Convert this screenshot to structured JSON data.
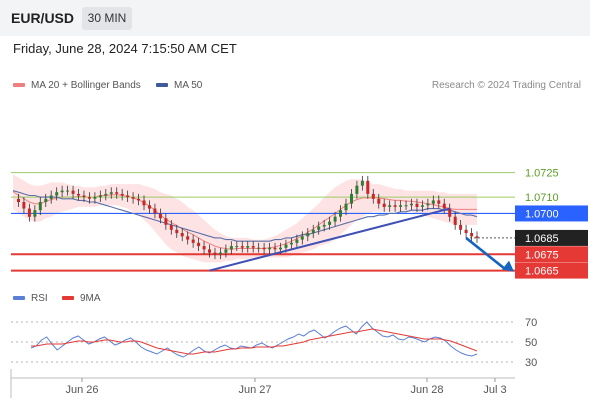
{
  "header": {
    "pair": "EUR/USD",
    "timeframe": "30 MIN",
    "datetime": "Friday, June 28, 2024 7:15:50 AM CET"
  },
  "legend": {
    "bb_label": "MA 20 + Bollinger Bands",
    "ma50_label": "MA 50",
    "rsi_label": "RSI",
    "rsi_ma_label": "9MA",
    "credit": "Research © 2024 Trading Central"
  },
  "colors": {
    "bb_fill": "#fddede",
    "bb_line": "#f08080",
    "ma50": "#5b6fa8",
    "candle_up": "#2e7d32",
    "candle_down": "#c62828",
    "resistance": "#9ccc65",
    "pivot": "#2962ff",
    "support": "#e53935",
    "trendline": "#3f51b5",
    "arrow": "#1565c0",
    "rsi": "#5b7fd6",
    "rsi_ma": "#e53935",
    "last_price": "#222222"
  },
  "chart_data": [
    {
      "type": "candlestick",
      "title": "EUR/USD 30 MIN",
      "ylim": [
        1.0658,
        1.0745
      ],
      "x_ticks": [
        "Jun 26",
        "Jun 27",
        "Jun 28",
        "Jul 3"
      ],
      "levels": [
        {
          "label": "1.0725",
          "value": 1.0725,
          "kind": "resistance"
        },
        {
          "label": "1.0710",
          "value": 1.071,
          "kind": "resistance"
        },
        {
          "label": "1.0700",
          "value": 1.07,
          "kind": "pivot"
        },
        {
          "label": "1.0685",
          "value": 1.0685,
          "kind": "last"
        },
        {
          "label": "1.0675",
          "value": 1.0675,
          "kind": "support"
        },
        {
          "label": "1.0665",
          "value": 1.0665,
          "kind": "support"
        }
      ],
      "close_series": [
        1.0709,
        1.0707,
        1.0703,
        1.0698,
        1.0702,
        1.0707,
        1.0709,
        1.0711,
        1.0713,
        1.0714,
        1.0714,
        1.0712,
        1.0711,
        1.071,
        1.0709,
        1.071,
        1.0711,
        1.0712,
        1.0713,
        1.0712,
        1.0711,
        1.071,
        1.0709,
        1.0708,
        1.0705,
        1.0703,
        1.07,
        1.0697,
        1.0693,
        1.069,
        1.0688,
        1.0686,
        1.0684,
        1.0682,
        1.068,
        1.0678,
        1.0676,
        1.0675,
        1.0676,
        1.0678,
        1.068,
        1.068,
        1.0679,
        1.068,
        1.0679,
        1.0679,
        1.0678,
        1.0679,
        1.0678,
        1.0679,
        1.0681,
        1.0682,
        1.0684,
        1.0686,
        1.0688,
        1.069,
        1.0692,
        1.0693,
        1.0695,
        1.0698,
        1.0702,
        1.0706,
        1.0712,
        1.0717,
        1.072,
        1.0712,
        1.0709,
        1.0706,
        1.0704,
        1.0705,
        1.0704,
        1.0705,
        1.0705,
        1.0706,
        1.0704,
        1.0705,
        1.0706,
        1.0708,
        1.0706,
        1.0703,
        1.0698,
        1.0693,
        1.069,
        1.0688,
        1.0686,
        1.0685
      ],
      "ma50_series": [
        1.0714,
        1.0713,
        1.0712,
        1.0711,
        1.0711,
        1.071,
        1.071,
        1.071,
        1.071,
        1.0709,
        1.0709,
        1.0709,
        1.0708,
        1.0708,
        1.0707,
        1.0707,
        1.0706,
        1.0705,
        1.0704,
        1.0703,
        1.0702,
        1.0701,
        1.07,
        1.0699,
        1.0698,
        1.0697,
        1.0696,
        1.0695,
        1.0694,
        1.0693,
        1.0692,
        1.0691,
        1.069,
        1.0689,
        1.0688,
        1.0687,
        1.0686,
        1.0685,
        1.0685,
        1.0684,
        1.0684,
        1.0683,
        1.0683,
        1.0683,
        1.0683,
        1.0683,
        1.0683,
        1.0683,
        1.0684,
        1.0684,
        1.0685,
        1.0685,
        1.0686,
        1.0687,
        1.0687,
        1.0688,
        1.0689,
        1.069,
        1.0691,
        1.0692,
        1.0693,
        1.0694,
        1.0695,
        1.0696,
        1.0697,
        1.0698,
        1.0698,
        1.0699,
        1.0699,
        1.07,
        1.07,
        1.0701,
        1.0701,
        1.0702,
        1.0702,
        1.0702,
        1.0703,
        1.0703,
        1.0703,
        1.0702,
        1.0702,
        1.0701,
        1.07,
        1.0699,
        1.0699,
        1.0698
      ],
      "bb_upper": [
        1.0724,
        1.0722,
        1.072,
        1.0718,
        1.0717,
        1.0717,
        1.0718,
        1.0719,
        1.0719,
        1.0719,
        1.0718,
        1.0717,
        1.0717,
        1.0716,
        1.0716,
        1.0716,
        1.0717,
        1.0717,
        1.0718,
        1.0718,
        1.0718,
        1.0718,
        1.0718,
        1.0718,
        1.0717,
        1.0716,
        1.0715,
        1.0713,
        1.0712,
        1.0711,
        1.0709,
        1.0707,
        1.0704,
        1.0702,
        1.0699,
        1.0696,
        1.0693,
        1.069,
        1.0688,
        1.0686,
        1.0685,
        1.0685,
        1.0685,
        1.0685,
        1.0684,
        1.0684,
        1.0684,
        1.0685,
        1.0686,
        1.0688,
        1.069,
        1.0692,
        1.0694,
        1.0697,
        1.07,
        1.0703,
        1.0706,
        1.071,
        1.0713,
        1.0716,
        1.0718,
        1.072,
        1.0721,
        1.0721,
        1.0721,
        1.0719,
        1.0718,
        1.0718,
        1.0717,
        1.0716,
        1.0715,
        1.0715,
        1.0714,
        1.0714,
        1.0714,
        1.0714,
        1.0714,
        1.0714,
        1.0713,
        1.0713,
        1.0712,
        1.0712,
        1.0712,
        1.0712,
        1.0712,
        1.0712
      ],
      "bb_lower": [
        1.0703,
        1.07,
        1.0698,
        1.0696,
        1.0695,
        1.0695,
        1.0697,
        1.0698,
        1.07,
        1.0701,
        1.0702,
        1.0703,
        1.0704,
        1.0704,
        1.0704,
        1.0704,
        1.0705,
        1.0705,
        1.0705,
        1.0705,
        1.0704,
        1.0703,
        1.0701,
        1.0699,
        1.0696,
        1.0693,
        1.0689,
        1.0685,
        1.0681,
        1.0678,
        1.0676,
        1.0674,
        1.0673,
        1.0672,
        1.0671,
        1.067,
        1.067,
        1.067,
        1.067,
        1.0671,
        1.0671,
        1.0672,
        1.0672,
        1.0672,
        1.0673,
        1.0673,
        1.0673,
        1.0673,
        1.0673,
        1.0673,
        1.0673,
        1.0674,
        1.0675,
        1.0676,
        1.0677,
        1.0678,
        1.068,
        1.0681,
        1.0682,
        1.0684,
        1.0687,
        1.069,
        1.0693,
        1.0696,
        1.0698,
        1.07,
        1.0701,
        1.0701,
        1.0701,
        1.0701,
        1.0701,
        1.0701,
        1.0701,
        1.0701,
        1.07,
        1.0699,
        1.0698,
        1.0697,
        1.0696,
        1.0695,
        1.0694,
        1.0693,
        1.0693,
        1.0693,
        1.0693,
        1.0693
      ]
    },
    {
      "type": "line",
      "title": "RSI",
      "ylim": [
        20,
        80
      ],
      "y_ticks": [
        70,
        50,
        30
      ],
      "series": [
        {
          "name": "RSI",
          "values": [
            44,
            46,
            52,
            55,
            48,
            42,
            46,
            50,
            54,
            56,
            52,
            48,
            50,
            53,
            55,
            51,
            47,
            49,
            52,
            54,
            50,
            45,
            42,
            40,
            38,
            41,
            44,
            40,
            37,
            35,
            38,
            42,
            45,
            41,
            39,
            42,
            45,
            47,
            44,
            43,
            46,
            45,
            44,
            47,
            49,
            46,
            44,
            47,
            50,
            53,
            55,
            58,
            56,
            60,
            62,
            58,
            54,
            57,
            61,
            64,
            66,
            62,
            58,
            65,
            70,
            64,
            60,
            56,
            55,
            57,
            53,
            52,
            55,
            54,
            52,
            50,
            53,
            55,
            54,
            51,
            46,
            42,
            39,
            37,
            36,
            38
          ]
        },
        {
          "name": "9MA",
          "values": [
            46,
            46,
            47,
            48,
            48,
            48,
            48,
            49,
            50,
            51,
            51,
            50,
            50,
            51,
            52,
            52,
            51,
            50,
            50,
            51,
            51,
            50,
            48,
            46,
            44,
            43,
            42,
            41,
            40,
            39,
            38,
            38,
            39,
            40,
            40,
            40,
            41,
            42,
            43,
            43,
            44,
            44,
            44,
            45,
            45,
            45,
            45,
            46,
            46,
            47,
            48,
            49,
            50,
            52,
            53,
            54,
            55,
            56,
            57,
            58,
            59,
            60,
            60,
            61,
            62,
            63,
            62,
            61,
            60,
            59,
            58,
            57,
            56,
            55,
            54,
            53,
            53,
            53,
            53,
            52,
            51,
            49,
            47,
            45,
            43,
            41
          ]
        }
      ]
    }
  ]
}
